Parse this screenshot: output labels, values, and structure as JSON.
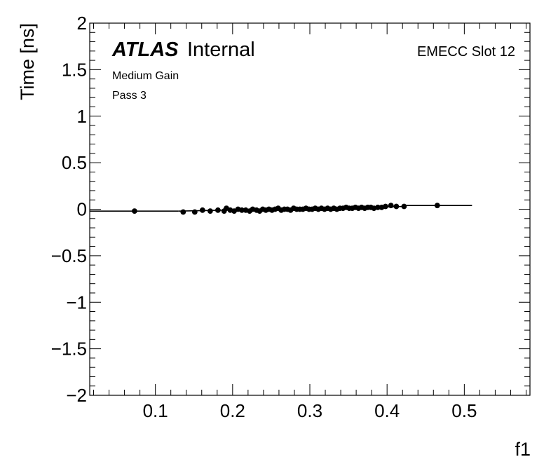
{
  "chart_data": {
    "type": "scatter",
    "xlabel": "f1",
    "ylabel": "Time [ns]",
    "xlim": [
      0.015,
      0.585
    ],
    "ylim": [
      -2,
      2
    ],
    "x_ticks": [
      0.1,
      0.2,
      0.3,
      0.4,
      0.5
    ],
    "x_tick_labels": [
      "0.1",
      "0.2",
      "0.3",
      "0.4",
      "0.5"
    ],
    "y_ticks": [
      2,
      1.5,
      1,
      0.5,
      0,
      -0.5,
      -1,
      -1.5,
      -2
    ],
    "y_tick_labels": [
      "2",
      "1.5",
      "1",
      "0.5",
      "0",
      "−0.5",
      "−1",
      "−1.5",
      "−2"
    ],
    "grid": false,
    "atlas_label": {
      "bold": "ATLAS",
      "rest": "Internal"
    },
    "annotations": [
      "Medium Gain",
      "Pass 3"
    ],
    "corner_label": "EMECC Slot 12",
    "series": [
      {
        "marker_color": "#000000",
        "points": [
          [
            0.073,
            -0.02
          ],
          [
            0.136,
            -0.03
          ],
          [
            0.151,
            -0.03
          ],
          [
            0.161,
            -0.01
          ],
          [
            0.171,
            -0.02
          ],
          [
            0.181,
            -0.01
          ],
          [
            0.189,
            -0.02
          ],
          [
            0.192,
            0.01
          ],
          [
            0.197,
            -0.01
          ],
          [
            0.202,
            -0.02
          ],
          [
            0.207,
            0.0
          ],
          [
            0.212,
            -0.01
          ],
          [
            0.217,
            -0.01
          ],
          [
            0.222,
            -0.02
          ],
          [
            0.226,
            0.0
          ],
          [
            0.231,
            -0.01
          ],
          [
            0.235,
            -0.02
          ],
          [
            0.239,
            0.0
          ],
          [
            0.243,
            -0.01
          ],
          [
            0.247,
            0.0
          ],
          [
            0.251,
            -0.01
          ],
          [
            0.255,
            0.0
          ],
          [
            0.259,
            0.01
          ],
          [
            0.263,
            -0.01
          ],
          [
            0.267,
            0.0
          ],
          [
            0.271,
            0.0
          ],
          [
            0.275,
            -0.01
          ],
          [
            0.279,
            0.01
          ],
          [
            0.283,
            0.0
          ],
          [
            0.287,
            0.0
          ],
          [
            0.291,
            0.0
          ],
          [
            0.295,
            0.01
          ],
          [
            0.299,
            0.0
          ],
          [
            0.303,
            0.0
          ],
          [
            0.307,
            0.01
          ],
          [
            0.311,
            0.0
          ],
          [
            0.315,
            0.01
          ],
          [
            0.319,
            0.0
          ],
          [
            0.323,
            0.01
          ],
          [
            0.327,
            0.0
          ],
          [
            0.331,
            0.01
          ],
          [
            0.335,
            0.0
          ],
          [
            0.339,
            0.01
          ],
          [
            0.343,
            0.01
          ],
          [
            0.347,
            0.02
          ],
          [
            0.351,
            0.01
          ],
          [
            0.355,
            0.01
          ],
          [
            0.359,
            0.02
          ],
          [
            0.363,
            0.01
          ],
          [
            0.367,
            0.02
          ],
          [
            0.371,
            0.01
          ],
          [
            0.375,
            0.02
          ],
          [
            0.379,
            0.02
          ],
          [
            0.383,
            0.01
          ],
          [
            0.388,
            0.02
          ],
          [
            0.393,
            0.02
          ],
          [
            0.398,
            0.03
          ],
          [
            0.405,
            0.04
          ],
          [
            0.412,
            0.03
          ],
          [
            0.422,
            0.03
          ],
          [
            0.465,
            0.04
          ]
        ]
      }
    ],
    "fit_segments": [
      {
        "x": [
          0.015,
          0.13
        ],
        "y": [
          -0.02,
          -0.02
        ]
      },
      {
        "x": [
          0.13,
          0.422
        ],
        "y": [
          -0.02,
          0.03
        ]
      },
      {
        "x": [
          0.422,
          0.51
        ],
        "y": [
          0.04,
          0.04
        ]
      }
    ]
  }
}
